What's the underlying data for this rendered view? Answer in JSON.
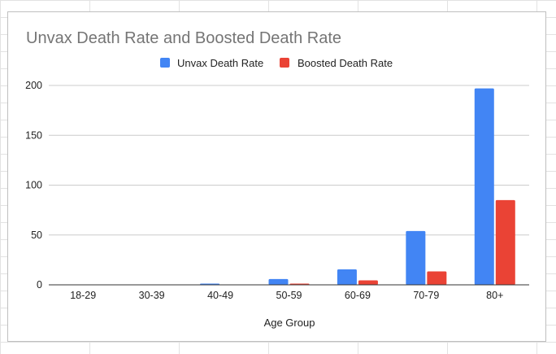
{
  "chart_data": {
    "type": "bar",
    "title": "Unvax Death Rate and Boosted Death Rate",
    "xlabel": "Age Group",
    "ylabel": "",
    "categories": [
      "18-29",
      "30-39",
      "40-49",
      "50-59",
      "60-69",
      "70-79",
      "80+"
    ],
    "series": [
      {
        "name": "Unvax Death Rate",
        "color": "#4285f4",
        "values": [
          0.1,
          0.3,
          1.2,
          5.8,
          15.5,
          54,
          197
        ]
      },
      {
        "name": "Boosted Death Rate",
        "color": "#ea4335",
        "values": [
          0.0,
          0.1,
          0.2,
          1.2,
          4.5,
          13.5,
          85
        ]
      }
    ],
    "ylim": [
      0,
      200
    ],
    "yticks": [
      0,
      50,
      100,
      150,
      200
    ],
    "grid": true,
    "legend_position": "top"
  }
}
